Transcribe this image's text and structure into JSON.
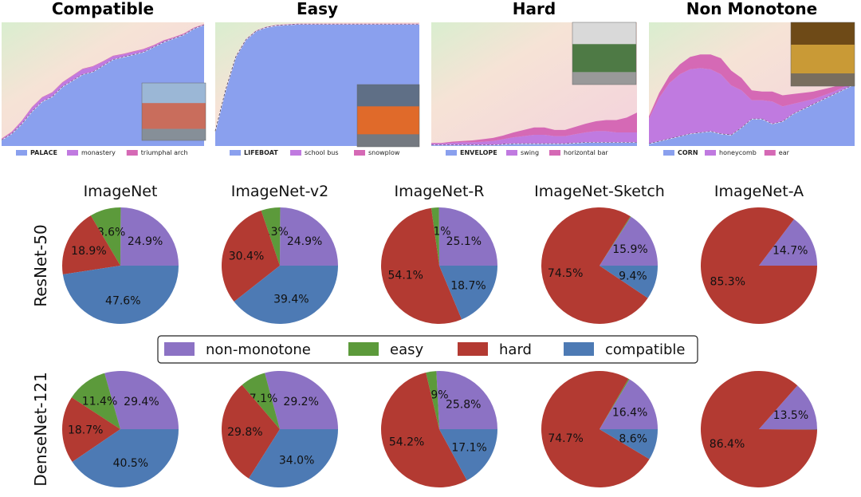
{
  "colors": {
    "non_monotone": "#8c72c4",
    "easy": "#5c9a3b",
    "hard": "#b33a32",
    "compatible": "#4d7ab4",
    "area_blue": "#8aa0ee",
    "area_purple": "#c07ae0",
    "area_pink": "#d569b5"
  },
  "chart_data": [
    {
      "type": "area",
      "title": "Compatible",
      "legend": [
        {
          "name": "PALACE",
          "bold": true
        },
        {
          "name": "monastery"
        },
        {
          "name": "triumphal arch"
        }
      ],
      "image_icon": "palace-photo",
      "x": [
        0,
        0.05,
        0.1,
        0.15,
        0.2,
        0.25,
        0.3,
        0.35,
        0.4,
        0.45,
        0.5,
        0.55,
        0.6,
        0.65,
        0.7,
        0.75,
        0.8,
        0.85,
        0.9,
        0.95,
        1.0
      ],
      "series": [
        {
          "name": "PALACE",
          "values": [
            0.05,
            0.1,
            0.18,
            0.28,
            0.36,
            0.4,
            0.48,
            0.53,
            0.58,
            0.6,
            0.65,
            0.7,
            0.72,
            0.74,
            0.76,
            0.8,
            0.84,
            0.87,
            0.9,
            0.95,
            0.98
          ]
        },
        {
          "name": "monastery",
          "values": [
            0.005,
            0.01,
            0.02,
            0.03,
            0.03,
            0.03,
            0.03,
            0.035,
            0.04,
            0.04,
            0.03,
            0.025,
            0.02,
            0.02,
            0.02,
            0.01,
            0.01,
            0.005,
            0.005,
            0.003,
            0.002
          ]
        },
        {
          "name": "triumphal arch",
          "values": [
            0.005,
            0.005,
            0.005,
            0.005,
            0.005,
            0.005,
            0.005,
            0.005,
            0.005,
            0.005,
            0.005,
            0.005,
            0.005,
            0.005,
            0.005,
            0.005,
            0.005,
            0.005,
            0.005,
            0.004,
            0.003
          ]
        }
      ]
    },
    {
      "type": "area",
      "title": "Easy",
      "legend": [
        {
          "name": "LIFEBOAT",
          "bold": true
        },
        {
          "name": "school bus"
        },
        {
          "name": "snowplow"
        }
      ],
      "image_icon": "lifeboat-photo",
      "x": [
        0,
        0.05,
        0.1,
        0.15,
        0.2,
        0.25,
        0.3,
        0.35,
        0.4,
        0.45,
        0.5,
        0.55,
        0.6,
        0.65,
        0.7,
        0.75,
        0.8,
        0.85,
        0.9,
        0.95,
        1.0
      ],
      "series": [
        {
          "name": "LIFEBOAT",
          "values": [
            0.12,
            0.45,
            0.72,
            0.86,
            0.93,
            0.96,
            0.975,
            0.98,
            0.985,
            0.985,
            0.985,
            0.985,
            0.985,
            0.985,
            0.985,
            0.985,
            0.985,
            0.985,
            0.985,
            0.985,
            0.985
          ]
        },
        {
          "name": "school bus",
          "values": [
            0.002,
            0.002,
            0.002,
            0.002,
            0.002,
            0.002,
            0.002,
            0.002,
            0.002,
            0.002,
            0.002,
            0.002,
            0.002,
            0.002,
            0.002,
            0.002,
            0.002,
            0.002,
            0.002,
            0.002,
            0.002
          ]
        },
        {
          "name": "snowplow",
          "values": [
            0.002,
            0.002,
            0.002,
            0.002,
            0.002,
            0.002,
            0.002,
            0.002,
            0.002,
            0.002,
            0.002,
            0.002,
            0.002,
            0.002,
            0.002,
            0.002,
            0.002,
            0.002,
            0.002,
            0.002,
            0.002
          ]
        }
      ]
    },
    {
      "type": "area",
      "title": "Hard",
      "legend": [
        {
          "name": "ENVELOPE",
          "bold": true
        },
        {
          "name": "swing"
        },
        {
          "name": "horizontal bar"
        }
      ],
      "image_icon": "envelope-photo",
      "x": [
        0,
        0.05,
        0.1,
        0.15,
        0.2,
        0.25,
        0.3,
        0.35,
        0.4,
        0.45,
        0.5,
        0.55,
        0.6,
        0.65,
        0.7,
        0.75,
        0.8,
        0.85,
        0.9,
        0.95,
        1.0
      ],
      "series": [
        {
          "name": "ENVELOPE",
          "values": [
            0.01,
            0.01,
            0.01,
            0.01,
            0.01,
            0.01,
            0.01,
            0.015,
            0.02,
            0.02,
            0.02,
            0.02,
            0.02,
            0.02,
            0.025,
            0.03,
            0.03,
            0.03,
            0.03,
            0.03,
            0.03
          ]
        },
        {
          "name": "swing",
          "values": [
            0.01,
            0.01,
            0.015,
            0.02,
            0.02,
            0.025,
            0.03,
            0.04,
            0.05,
            0.06,
            0.07,
            0.07,
            0.06,
            0.06,
            0.07,
            0.08,
            0.09,
            0.09,
            0.08,
            0.08,
            0.08
          ]
        },
        {
          "name": "horizontal bar",
          "values": [
            0.005,
            0.005,
            0.01,
            0.01,
            0.015,
            0.02,
            0.025,
            0.03,
            0.04,
            0.05,
            0.06,
            0.06,
            0.05,
            0.05,
            0.06,
            0.07,
            0.08,
            0.09,
            0.1,
            0.12,
            0.16
          ]
        }
      ]
    },
    {
      "type": "area",
      "title": "Non Monotone",
      "legend": [
        {
          "name": "CORN",
          "bold": true
        },
        {
          "name": "honeycomb"
        },
        {
          "name": "ear"
        }
      ],
      "image_icon": "corn-photo",
      "x": [
        0,
        0.05,
        0.1,
        0.15,
        0.2,
        0.25,
        0.3,
        0.35,
        0.4,
        0.45,
        0.5,
        0.55,
        0.6,
        0.65,
        0.7,
        0.75,
        0.8,
        0.85,
        0.9,
        0.95,
        1.0
      ],
      "series": [
        {
          "name": "CORN",
          "values": [
            0.02,
            0.04,
            0.06,
            0.08,
            0.1,
            0.11,
            0.12,
            0.1,
            0.09,
            0.15,
            0.22,
            0.22,
            0.18,
            0.2,
            0.26,
            0.3,
            0.34,
            0.38,
            0.42,
            0.46,
            0.5
          ]
        },
        {
          "name": "honeycomb",
          "values": [
            0.2,
            0.35,
            0.45,
            0.5,
            0.52,
            0.52,
            0.5,
            0.48,
            0.4,
            0.3,
            0.15,
            0.15,
            0.18,
            0.12,
            0.08,
            0.06,
            0.04,
            0.03,
            0.02,
            0.02,
            0.01
          ]
        },
        {
          "name": "ear",
          "values": [
            0.02,
            0.04,
            0.06,
            0.08,
            0.1,
            0.11,
            0.12,
            0.13,
            0.12,
            0.1,
            0.08,
            0.07,
            0.08,
            0.09,
            0.08,
            0.07,
            0.06,
            0.05,
            0.04,
            0.03,
            0.02
          ]
        }
      ]
    },
    {
      "type": "pie",
      "row": "ResNet-50",
      "title": "ImageNet",
      "values": {
        "non_monotone": 24.9,
        "easy": 8.6,
        "hard": 18.9,
        "compatible": 47.6
      },
      "labels": [
        "24.9%",
        "8.6%",
        "18.9%",
        "47.6%"
      ]
    },
    {
      "type": "pie",
      "row": "ResNet-50",
      "title": "ImageNet-v2",
      "values": {
        "non_monotone": 24.9,
        "easy": 5.3,
        "hard": 30.4,
        "compatible": 39.4
      },
      "labels": [
        "24.9%",
        "5.3%",
        "30.4%",
        "39.4%"
      ]
    },
    {
      "type": "pie",
      "row": "ResNet-50",
      "title": "ImageNet-R",
      "values": {
        "non_monotone": 25.1,
        "easy": 2.1,
        "hard": 54.1,
        "compatible": 18.7
      },
      "labels": [
        "25.1%",
        "2.1%",
        "54.1%",
        "18.7%"
      ]
    },
    {
      "type": "pie",
      "row": "ResNet-50",
      "title": "ImageNet-Sketch",
      "values": {
        "non_monotone": 15.9,
        "easy": 0.2,
        "hard": 74.5,
        "compatible": 9.4
      },
      "labels": [
        "15.9%",
        "",
        "74.5%",
        "9.4%"
      ]
    },
    {
      "type": "pie",
      "row": "ResNet-50",
      "title": "ImageNet-A",
      "values": {
        "non_monotone": 14.7,
        "easy": 0,
        "hard": 85.3,
        "compatible": 0
      },
      "labels": [
        "14.7%",
        "",
        "85.3%",
        ""
      ]
    },
    {
      "type": "pie",
      "row": "DenseNet-121",
      "title": "",
      "values": {
        "non_monotone": 29.4,
        "easy": 11.4,
        "hard": 18.7,
        "compatible": 40.5
      },
      "labels": [
        "29.4%",
        "11.4%",
        "18.7%",
        "40.5%"
      ]
    },
    {
      "type": "pie",
      "row": "DenseNet-121",
      "title": "",
      "values": {
        "non_monotone": 29.2,
        "easy": 7.1,
        "hard": 29.8,
        "compatible": 34.0
      },
      "labels": [
        "29.2%",
        "7.1%",
        "29.8%",
        "34.0%"
      ]
    },
    {
      "type": "pie",
      "row": "DenseNet-121",
      "title": "",
      "values": {
        "non_monotone": 25.8,
        "easy": 2.9,
        "hard": 54.2,
        "compatible": 17.1
      },
      "labels": [
        "25.8%",
        "2.9%",
        "54.2%",
        "17.1%"
      ]
    },
    {
      "type": "pie",
      "row": "DenseNet-121",
      "title": "",
      "values": {
        "non_monotone": 16.4,
        "easy": 0.3,
        "hard": 74.7,
        "compatible": 8.6
      },
      "labels": [
        "16.4%",
        "",
        "74.7%",
        "8.6%"
      ]
    },
    {
      "type": "pie",
      "row": "DenseNet-121",
      "title": "",
      "values": {
        "non_monotone": 13.5,
        "easy": 0,
        "hard": 86.4,
        "compatible": 0.1
      },
      "labels": [
        "13.5%",
        "",
        "86.4%",
        ""
      ]
    }
  ],
  "row_labels": [
    "ResNet-50",
    "DenseNet-121"
  ],
  "pie_legend": [
    {
      "key": "non_monotone",
      "label": "non-monotone"
    },
    {
      "key": "easy",
      "label": "easy"
    },
    {
      "key": "hard",
      "label": "hard"
    },
    {
      "key": "compatible",
      "label": "compatible"
    }
  ]
}
